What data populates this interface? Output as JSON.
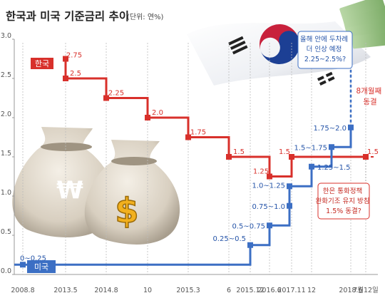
{
  "title": "한국과 미국 기준금리 추이",
  "unit_note": "(단위: 연%)",
  "chart_data": {
    "type": "line",
    "step": true,
    "ylim": [
      0,
      3.0
    ],
    "yticks": [
      "0.0",
      "0.5",
      "1.0",
      "1.5",
      "2.0",
      "2.5",
      "3.0"
    ],
    "grid": false,
    "x_ticks": [
      "2008.8",
      "2013.5",
      "2014.8",
      "10",
      "2015.3",
      "6",
      "2015.12",
      "2016.6",
      "2017.11",
      "12",
      "2018.6",
      "7월12일"
    ],
    "series": [
      {
        "name": "한국",
        "color": "#d8302b",
        "points": [
          {
            "x": "2013.5",
            "y": 2.75,
            "label": "2.75"
          },
          {
            "x": "2013.5",
            "y": 2.5,
            "label": "2.5"
          },
          {
            "x": "2014.8",
            "y": 2.25,
            "label": "2.25"
          },
          {
            "x": "10",
            "y": 2.0,
            "label": "2.0"
          },
          {
            "x": "2015.3",
            "y": 1.75,
            "label": "1.75"
          },
          {
            "x": "6",
            "y": 1.5,
            "label": "1.5"
          },
          {
            "x": "2016.6",
            "y": 1.25,
            "label": "1.25"
          },
          {
            "x": "2017.11",
            "y": 1.5,
            "label": "1.5"
          },
          {
            "x": "7월12일",
            "y": 1.5,
            "label": "1.5"
          }
        ]
      },
      {
        "name": "미국",
        "color": "#3c6fc4",
        "points": [
          {
            "x": "2008.8",
            "y": 0.125,
            "label": "0~0.25"
          },
          {
            "x": "2015.12",
            "y": 0.375,
            "label": "0.25~0.5"
          },
          {
            "x": "2016.6",
            "y": 0.625,
            "label": "0.5~0.75"
          },
          {
            "x": "2016.6",
            "y": 0.875,
            "label": "0.75~1.0"
          },
          {
            "x": "2016.6",
            "y": 1.125,
            "label": "1.0~1.25"
          },
          {
            "x": "12",
            "y": 1.375,
            "label": "1.25~1.5"
          },
          {
            "x": "12",
            "y": 1.625,
            "label": "1.5~1.75"
          },
          {
            "x": "2018.6",
            "y": 1.875,
            "label": "1.75~2.0"
          }
        ]
      }
    ],
    "annotations": {
      "us_forecast": "올해 안에 두차례 더 인상 예정 2.25~2.5%?",
      "korea_freeze": "8개월째 동결",
      "korea_policy": "한은 통화정책 완화기조 유지 방침 1.5% 동결?"
    },
    "colors": {
      "korea": "#d8302b",
      "us": "#3c6fc4",
      "dashed_ref": "#aaaaaa"
    },
    "icons": [
      "won-money-bag-icon",
      "dollar-money-bag-icon",
      "korean-flag-icon",
      "banknotes-icon"
    ]
  }
}
